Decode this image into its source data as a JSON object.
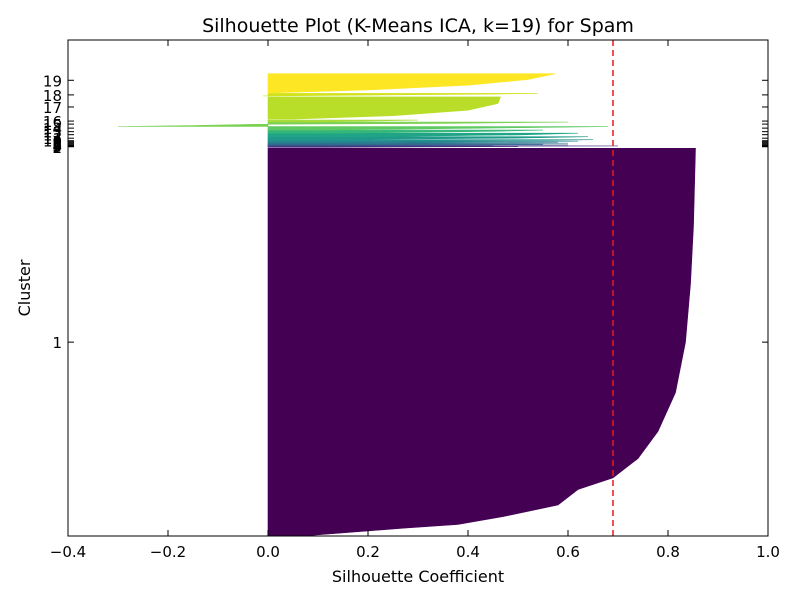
{
  "chart_data": {
    "type": "bar",
    "orientation": "horizontal",
    "title": "Silhouette Plot (K-Means ICA, k=19) for Spam",
    "xlabel": "Silhouette Coefficient",
    "ylabel": "Cluster",
    "xlim": [
      -0.4,
      1.0
    ],
    "xticks": [
      -0.4,
      -0.2,
      0.0,
      0.2,
      0.4,
      0.6,
      0.8,
      1.0
    ],
    "xtick_labels": [
      "−0.4",
      "−0.2",
      "0.0",
      "0.2",
      "0.4",
      "0.6",
      "0.8",
      "1.0"
    ],
    "grid": false,
    "average_silhouette": 0.69,
    "reference_line": {
      "style": "dashed",
      "color": "#e41a1c"
    },
    "ylim": [
      0,
      4925
    ],
    "cluster_labels": [
      {
        "label": "1",
        "y": 1925
      },
      {
        "label": "2",
        "y": 3865
      },
      {
        "label": "3",
        "y": 3870
      },
      {
        "label": "4",
        "y": 3875
      },
      {
        "label": "5",
        "y": 3880
      },
      {
        "label": "6",
        "y": 3885
      },
      {
        "label": "7",
        "y": 3895
      },
      {
        "label": "8",
        "y": 3905
      },
      {
        "label": "9",
        "y": 3915
      },
      {
        "label": "10",
        "y": 3925
      },
      {
        "label": "11",
        "y": 3950
      },
      {
        "label": "12",
        "y": 3985
      },
      {
        "label": "13",
        "y": 4015
      },
      {
        "label": "14",
        "y": 4050
      },
      {
        "label": "15",
        "y": 4090
      },
      {
        "label": "16",
        "y": 4120
      },
      {
        "label": "17",
        "y": 4260
      },
      {
        "label": "18",
        "y": 4380
      },
      {
        "label": "19",
        "y": 4525
      }
    ],
    "clusters": [
      {
        "label": "1",
        "color": "#440154",
        "y_start": 0,
        "y_end": 3850,
        "profile": [
          [
            0,
            0.07
          ],
          [
            0.02,
            0.27
          ],
          [
            0.03,
            0.38
          ],
          [
            0.05,
            0.47
          ],
          [
            0.08,
            0.58
          ],
          [
            0.12,
            0.62
          ],
          [
            0.15,
            0.69
          ],
          [
            0.2,
            0.74
          ],
          [
            0.27,
            0.78
          ],
          [
            0.37,
            0.815
          ],
          [
            0.5,
            0.835
          ],
          [
            0.65,
            0.845
          ],
          [
            0.8,
            0.851
          ],
          [
            1,
            0.855
          ]
        ]
      },
      {
        "label": "2",
        "color": "#482576",
        "y_start": 3860,
        "y_end": 3867,
        "profile": [
          [
            0,
            0.12
          ],
          [
            1,
            0.5
          ]
        ]
      },
      {
        "label": "3",
        "color": "#443983",
        "y_start": 3868,
        "y_end": 3873,
        "profile": [
          [
            0,
            0.2
          ],
          [
            1,
            0.7
          ]
        ]
      },
      {
        "label": "4",
        "color": "#3f4a8a",
        "y_start": 3874,
        "y_end": 3878,
        "profile": [
          [
            0,
            0.1
          ],
          [
            1,
            0.45
          ]
        ]
      },
      {
        "label": "5",
        "color": "#39568c",
        "y_start": 3879,
        "y_end": 3883,
        "profile": [
          [
            0,
            0.15
          ],
          [
            1,
            0.6
          ]
        ]
      },
      {
        "label": "6",
        "color": "#31688e",
        "y_start": 3884,
        "y_end": 3890,
        "profile": [
          [
            0,
            0.12
          ],
          [
            1,
            0.55
          ]
        ]
      },
      {
        "label": "7",
        "color": "#2c728e",
        "y_start": 3891,
        "y_end": 3900,
        "profile": [
          [
            0,
            0.1
          ],
          [
            1,
            0.6
          ]
        ]
      },
      {
        "label": "8",
        "color": "#287c8e",
        "y_start": 3901,
        "y_end": 3910,
        "profile": [
          [
            0,
            0.1
          ],
          [
            1,
            0.58
          ]
        ]
      },
      {
        "label": "9",
        "color": "#24868e",
        "y_start": 3911,
        "y_end": 3920,
        "profile": [
          [
            0,
            0.12
          ],
          [
            1,
            0.62
          ]
        ]
      },
      {
        "label": "10",
        "color": "#21918c",
        "y_start": 3921,
        "y_end": 3935,
        "profile": [
          [
            0,
            0.1
          ],
          [
            0.6,
            0.55
          ],
          [
            1,
            0.65
          ]
        ]
      },
      {
        "label": "11",
        "color": "#1f9a8a",
        "y_start": 3936,
        "y_end": 3965,
        "profile": [
          [
            0,
            0.1
          ],
          [
            0.5,
            0.5
          ],
          [
            1,
            0.64
          ]
        ]
      },
      {
        "label": "12",
        "color": "#20a486",
        "y_start": 3966,
        "y_end": 4000,
        "profile": [
          [
            0,
            0.2
          ],
          [
            0.5,
            0.5
          ],
          [
            1,
            0.62
          ]
        ]
      },
      {
        "label": "13",
        "color": "#35b779",
        "y_start": 4001,
        "y_end": 4030,
        "profile": [
          [
            0,
            0.15
          ],
          [
            0.6,
            0.45
          ],
          [
            1,
            0.55
          ]
        ]
      },
      {
        "label": "14",
        "color": "#5ec962",
        "y_start": 4031,
        "y_end": 4065,
        "profile": [
          [
            0,
            0.1
          ],
          [
            0.5,
            0.4
          ],
          [
            1,
            0.68
          ]
        ]
      },
      {
        "label": "15",
        "color": "#7ad151",
        "y_start": 4066,
        "y_end": 4110,
        "profile": [
          [
            0,
            -0.3
          ],
          [
            0.2,
            -0.15
          ],
          [
            0.45,
            -0.05
          ],
          [
            0.52,
            0.0
          ],
          [
            0.7,
            0.35
          ],
          [
            1,
            0.6
          ]
        ]
      },
      {
        "label": "16",
        "color": "#a5db36",
        "y_start": 4111,
        "y_end": 4130,
        "profile": [
          [
            0,
            0.1
          ],
          [
            1,
            0.3
          ]
        ]
      },
      {
        "label": "17",
        "color": "#b8de29",
        "y_start": 4140,
        "y_end": 4360,
        "profile": [
          [
            0,
            0.05
          ],
          [
            0.15,
            0.25
          ],
          [
            0.4,
            0.4
          ],
          [
            0.7,
            0.46
          ],
          [
            1,
            0.465
          ]
        ]
      },
      {
        "label": "18",
        "color": "#d2e21b",
        "y_start": 4370,
        "y_end": 4395,
        "profile": [
          [
            0,
            -0.01
          ],
          [
            0.3,
            0.2
          ],
          [
            0.7,
            0.45
          ],
          [
            1,
            0.54
          ]
        ]
      },
      {
        "label": "19",
        "color": "#fde725",
        "y_start": 4400,
        "y_end": 4590,
        "profile": [
          [
            0,
            0.0
          ],
          [
            0.15,
            0.2
          ],
          [
            0.4,
            0.4
          ],
          [
            0.7,
            0.52
          ],
          [
            1,
            0.575
          ]
        ]
      }
    ]
  }
}
